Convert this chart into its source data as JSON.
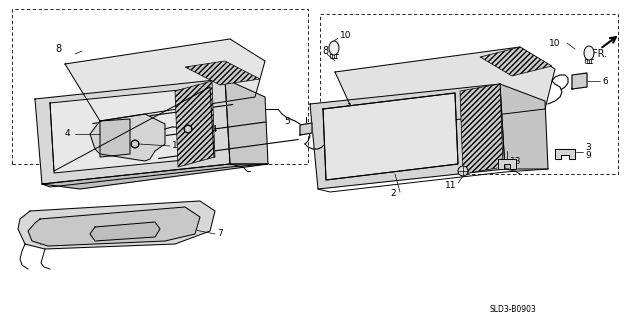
{
  "bg_color": "#ffffff",
  "line_color": "#000000",
  "fig_width": 6.4,
  "fig_height": 3.19,
  "dpi": 100,
  "diagram_code": "SLD3-B0903"
}
